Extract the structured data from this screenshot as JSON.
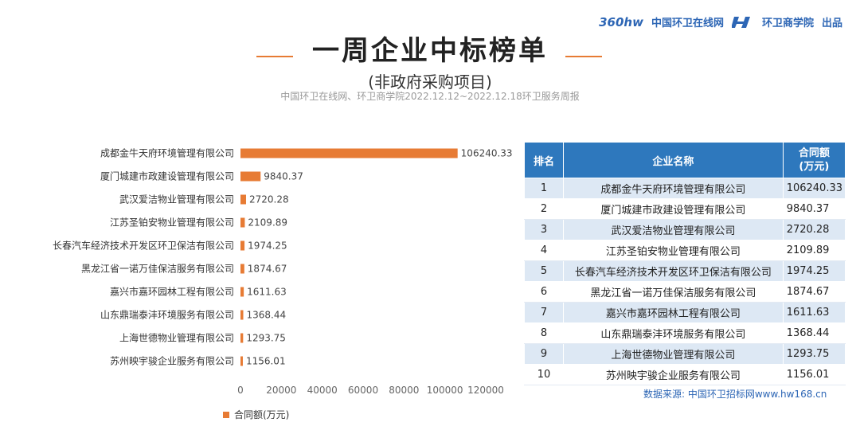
{
  "brand": {
    "logo1": "360hw",
    "name1": "中国环卫在线网",
    "name2": "环卫商学院",
    "suffix": "出品"
  },
  "title": "一周企业中标榜单",
  "subtitle": "(非政府采购项目)",
  "source_line": "中国环卫在线网、环卫商学院2022.12.12~2022.12.18环卫服务周报",
  "colors": {
    "bar": "#e77b34",
    "table_header": "#2e78bd",
    "table_stripe": "#dde8f4",
    "accent_text": "#2d66b5"
  },
  "chart_data": {
    "type": "bar",
    "orientation": "horizontal",
    "categories": [
      "成都金牛天府环境管理有限公司",
      "厦门城建市政建设管理有限公司",
      "武汉爱洁物业管理有限公司",
      "江苏圣铂安物业管理有限公司",
      "长春汽车经济技术开发区环卫保洁有限公司",
      "黑龙江省一诺万佳保洁服务有限公司",
      "嘉兴市嘉环园林工程有限公司",
      "山东鼎瑞泰沣环境服务有限公司",
      "上海世德物业管理有限公司",
      "苏州映宇骏企业服务有限公司"
    ],
    "series": [
      {
        "name": "合同额(万元)",
        "values": [
          106240.33,
          9840.37,
          2720.28,
          2109.89,
          1974.25,
          1874.67,
          1611.63,
          1368.44,
          1293.75,
          1156.01
        ],
        "value_labels": [
          "106240.33",
          "9840.37",
          "2720.28",
          "2109.89",
          "1974.25",
          "1874.67",
          "1611.63",
          "1368.44",
          "1293.75",
          "1156.01"
        ]
      }
    ],
    "x_ticks": [
      "0",
      "20000",
      "40000",
      "60000",
      "80000",
      "100000",
      "120000"
    ],
    "xlim": [
      0,
      120000
    ],
    "grid": false,
    "legend": "bottom-left"
  },
  "table": {
    "headers": [
      "排名",
      "企业名称",
      "合同额\n(万元)"
    ],
    "rows": [
      [
        "1",
        "成都金牛天府环境管理有限公司",
        "106240.33"
      ],
      [
        "2",
        "厦门城建市政建设管理有限公司",
        "9840.37"
      ],
      [
        "3",
        "武汉爱洁物业管理有限公司",
        "2720.28"
      ],
      [
        "4",
        "江苏圣铂安物业管理有限公司",
        "2109.89"
      ],
      [
        "5",
        "长春汽车经济技术开发区环卫保洁有限公司",
        "1974.25"
      ],
      [
        "6",
        "黑龙江省一诺万佳保洁服务有限公司",
        "1874.67"
      ],
      [
        "7",
        "嘉兴市嘉环园林工程有限公司",
        "1611.63"
      ],
      [
        "8",
        "山东鼎瑞泰沣环境服务有限公司",
        "1368.44"
      ],
      [
        "9",
        "上海世德物业管理有限公司",
        "1293.75"
      ],
      [
        "10",
        "苏州映宇骏企业服务有限公司",
        "1156.01"
      ]
    ]
  },
  "data_source": "数据来源: 中国环卫招标网www.hw168.cn"
}
